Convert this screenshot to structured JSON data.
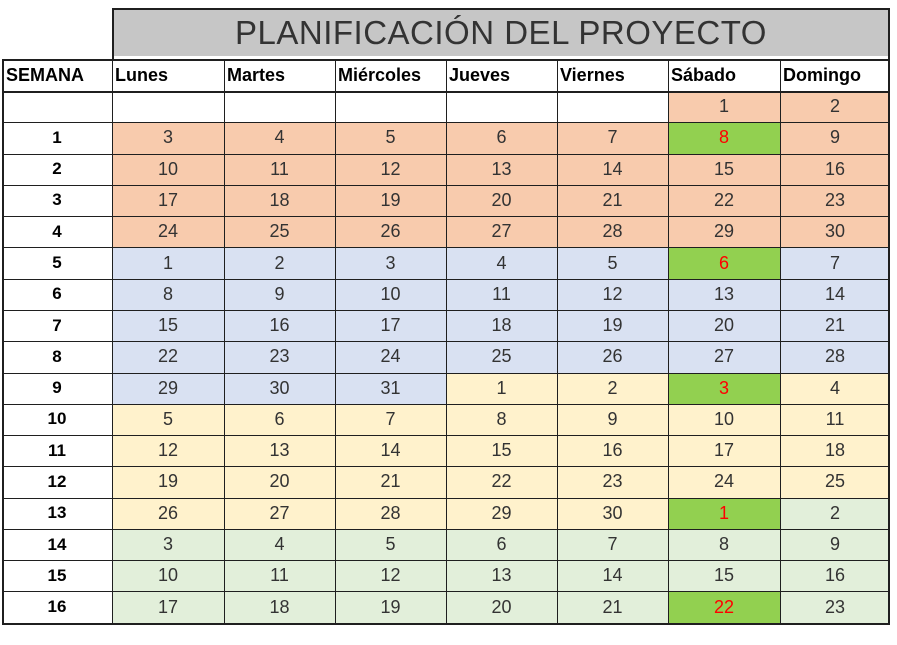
{
  "title": "PLANIFICACIÓN DEL PROYECTO",
  "headers": [
    "SEMANA",
    "Lunes",
    "Martes",
    "Miércoles",
    "Jueves",
    "Viernes",
    "Sábado",
    "Domingo"
  ],
  "colors": {
    "orange": "#f8cbad",
    "blue": "#d9e1f2",
    "yellow": "#fff2cc",
    "green": "#e2efda",
    "highlight": "#92d050",
    "highlight_text": "#ff0000"
  },
  "rows": [
    {
      "week": "",
      "days": [
        {
          "v": "",
          "c": "white"
        },
        {
          "v": "",
          "c": "white"
        },
        {
          "v": "",
          "c": "white"
        },
        {
          "v": "",
          "c": "white"
        },
        {
          "v": "",
          "c": "white"
        },
        {
          "v": "1",
          "c": "orange"
        },
        {
          "v": "2",
          "c": "orange"
        }
      ]
    },
    {
      "week": "1",
      "days": [
        {
          "v": "3",
          "c": "orange"
        },
        {
          "v": "4",
          "c": "orange"
        },
        {
          "v": "5",
          "c": "orange"
        },
        {
          "v": "6",
          "c": "orange"
        },
        {
          "v": "7",
          "c": "orange"
        },
        {
          "v": "8",
          "c": "highlight"
        },
        {
          "v": "9",
          "c": "orange"
        }
      ]
    },
    {
      "week": "2",
      "days": [
        {
          "v": "10",
          "c": "orange"
        },
        {
          "v": "11",
          "c": "orange"
        },
        {
          "v": "12",
          "c": "orange"
        },
        {
          "v": "13",
          "c": "orange"
        },
        {
          "v": "14",
          "c": "orange"
        },
        {
          "v": "15",
          "c": "orange"
        },
        {
          "v": "16",
          "c": "orange"
        }
      ]
    },
    {
      "week": "3",
      "days": [
        {
          "v": "17",
          "c": "orange"
        },
        {
          "v": "18",
          "c": "orange"
        },
        {
          "v": "19",
          "c": "orange"
        },
        {
          "v": "20",
          "c": "orange"
        },
        {
          "v": "21",
          "c": "orange"
        },
        {
          "v": "22",
          "c": "orange"
        },
        {
          "v": "23",
          "c": "orange"
        }
      ]
    },
    {
      "week": "4",
      "days": [
        {
          "v": "24",
          "c": "orange"
        },
        {
          "v": "25",
          "c": "orange"
        },
        {
          "v": "26",
          "c": "orange"
        },
        {
          "v": "27",
          "c": "orange"
        },
        {
          "v": "28",
          "c": "orange"
        },
        {
          "v": "29",
          "c": "orange"
        },
        {
          "v": "30",
          "c": "orange"
        }
      ]
    },
    {
      "week": "5",
      "days": [
        {
          "v": "1",
          "c": "blue"
        },
        {
          "v": "2",
          "c": "blue"
        },
        {
          "v": "3",
          "c": "blue"
        },
        {
          "v": "4",
          "c": "blue"
        },
        {
          "v": "5",
          "c": "blue"
        },
        {
          "v": "6",
          "c": "highlight"
        },
        {
          "v": "7",
          "c": "blue"
        }
      ]
    },
    {
      "week": "6",
      "days": [
        {
          "v": "8",
          "c": "blue"
        },
        {
          "v": "9",
          "c": "blue"
        },
        {
          "v": "10",
          "c": "blue"
        },
        {
          "v": "11",
          "c": "blue"
        },
        {
          "v": "12",
          "c": "blue"
        },
        {
          "v": "13",
          "c": "blue"
        },
        {
          "v": "14",
          "c": "blue"
        }
      ]
    },
    {
      "week": "7",
      "days": [
        {
          "v": "15",
          "c": "blue"
        },
        {
          "v": "16",
          "c": "blue"
        },
        {
          "v": "17",
          "c": "blue"
        },
        {
          "v": "18",
          "c": "blue"
        },
        {
          "v": "19",
          "c": "blue"
        },
        {
          "v": "20",
          "c": "blue"
        },
        {
          "v": "21",
          "c": "blue"
        }
      ]
    },
    {
      "week": "8",
      "days": [
        {
          "v": "22",
          "c": "blue"
        },
        {
          "v": "23",
          "c": "blue"
        },
        {
          "v": "24",
          "c": "blue"
        },
        {
          "v": "25",
          "c": "blue"
        },
        {
          "v": "26",
          "c": "blue"
        },
        {
          "v": "27",
          "c": "blue"
        },
        {
          "v": "28",
          "c": "blue"
        }
      ]
    },
    {
      "week": "9",
      "days": [
        {
          "v": "29",
          "c": "blue"
        },
        {
          "v": "30",
          "c": "blue"
        },
        {
          "v": "31",
          "c": "blue"
        },
        {
          "v": "1",
          "c": "yellow"
        },
        {
          "v": "2",
          "c": "yellow"
        },
        {
          "v": "3",
          "c": "highlight"
        },
        {
          "v": "4",
          "c": "yellow"
        }
      ]
    },
    {
      "week": "10",
      "days": [
        {
          "v": "5",
          "c": "yellow"
        },
        {
          "v": "6",
          "c": "yellow"
        },
        {
          "v": "7",
          "c": "yellow"
        },
        {
          "v": "8",
          "c": "yellow"
        },
        {
          "v": "9",
          "c": "yellow"
        },
        {
          "v": "10",
          "c": "yellow"
        },
        {
          "v": "11",
          "c": "yellow"
        }
      ]
    },
    {
      "week": "11",
      "days": [
        {
          "v": "12",
          "c": "yellow"
        },
        {
          "v": "13",
          "c": "yellow"
        },
        {
          "v": "14",
          "c": "yellow"
        },
        {
          "v": "15",
          "c": "yellow"
        },
        {
          "v": "16",
          "c": "yellow"
        },
        {
          "v": "17",
          "c": "yellow"
        },
        {
          "v": "18",
          "c": "yellow"
        }
      ]
    },
    {
      "week": "12",
      "days": [
        {
          "v": "19",
          "c": "yellow"
        },
        {
          "v": "20",
          "c": "yellow"
        },
        {
          "v": "21",
          "c": "yellow"
        },
        {
          "v": "22",
          "c": "yellow"
        },
        {
          "v": "23",
          "c": "yellow"
        },
        {
          "v": "24",
          "c": "yellow"
        },
        {
          "v": "25",
          "c": "yellow"
        }
      ]
    },
    {
      "week": "13",
      "days": [
        {
          "v": "26",
          "c": "yellow"
        },
        {
          "v": "27",
          "c": "yellow"
        },
        {
          "v": "28",
          "c": "yellow"
        },
        {
          "v": "29",
          "c": "yellow"
        },
        {
          "v": "30",
          "c": "yellow"
        },
        {
          "v": "1",
          "c": "highlight"
        },
        {
          "v": "2",
          "c": "green"
        }
      ]
    },
    {
      "week": "14",
      "days": [
        {
          "v": "3",
          "c": "green"
        },
        {
          "v": "4",
          "c": "green"
        },
        {
          "v": "5",
          "c": "green"
        },
        {
          "v": "6",
          "c": "green"
        },
        {
          "v": "7",
          "c": "green"
        },
        {
          "v": "8",
          "c": "green"
        },
        {
          "v": "9",
          "c": "green"
        }
      ]
    },
    {
      "week": "15",
      "days": [
        {
          "v": "10",
          "c": "green"
        },
        {
          "v": "11",
          "c": "green"
        },
        {
          "v": "12",
          "c": "green"
        },
        {
          "v": "13",
          "c": "green"
        },
        {
          "v": "14",
          "c": "green"
        },
        {
          "v": "15",
          "c": "green"
        },
        {
          "v": "16",
          "c": "green"
        }
      ]
    },
    {
      "week": "16",
      "days": [
        {
          "v": "17",
          "c": "green"
        },
        {
          "v": "18",
          "c": "green"
        },
        {
          "v": "19",
          "c": "green"
        },
        {
          "v": "20",
          "c": "green"
        },
        {
          "v": "21",
          "c": "green"
        },
        {
          "v": "22",
          "c": "highlight"
        },
        {
          "v": "23",
          "c": "green"
        }
      ]
    }
  ]
}
